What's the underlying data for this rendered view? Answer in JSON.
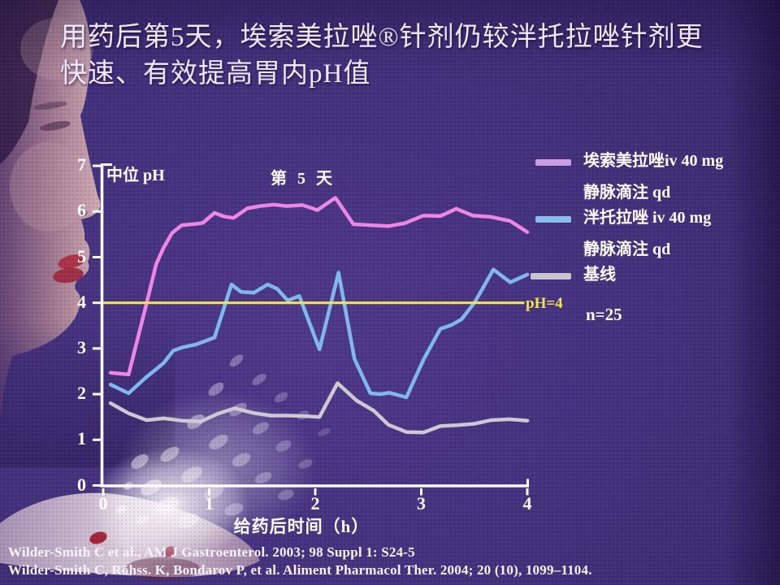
{
  "slide": {
    "title_line1": "用药后第5天，埃索美拉唑®针剂仍较泮托拉唑针剂更",
    "title_line2": "快速、有效提高胃内pH值",
    "references": [
      "Wilder-Smith C  et al., AM J Gastroenterol. 2003; 98 Suppl 1: S24-5",
      "Wilder-Smith C, Röhss. K, Bondarov P, et al. Aliment Pharmacol Ther. 2004; 20 (10), 1099–1104."
    ]
  },
  "chart_data": {
    "type": "line",
    "title": "第 5 天",
    "ylabel": "中位 pH",
    "xlabel": "给药后时间（h）",
    "xlim": [
      0,
      4
    ],
    "ylim": [
      0,
      7
    ],
    "xticks": [
      "0",
      "1",
      "2",
      "3",
      "4"
    ],
    "yticks": [
      "0",
      "1",
      "2",
      "3",
      "4",
      "5",
      "6",
      "7"
    ],
    "grid": false,
    "legend_position": "right",
    "reference_line": {
      "y": 4,
      "label": "pH=4",
      "color": "#f2e44a"
    },
    "annotation": "n=25",
    "series": [
      {
        "name": "埃索美拉唑iv 40 mg 静脉滴注 qd",
        "color": "#ef86e4",
        "points": [
          [
            0.07,
            2.47
          ],
          [
            0.24,
            2.43
          ],
          [
            0.4,
            3.9
          ],
          [
            0.5,
            4.85
          ],
          [
            0.57,
            5.21
          ],
          [
            0.65,
            5.53
          ],
          [
            0.74,
            5.7
          ],
          [
            0.88,
            5.73
          ],
          [
            0.94,
            5.75
          ],
          [
            1.05,
            5.97
          ],
          [
            1.14,
            5.89
          ],
          [
            1.23,
            5.86
          ],
          [
            1.36,
            6.07
          ],
          [
            1.48,
            6.12
          ],
          [
            1.61,
            6.15
          ],
          [
            1.73,
            6.12
          ],
          [
            1.88,
            6.14
          ],
          [
            2.02,
            6.03
          ],
          [
            2.19,
            6.3
          ],
          [
            2.36,
            5.72
          ],
          [
            2.53,
            5.7
          ],
          [
            2.69,
            5.68
          ],
          [
            2.84,
            5.74
          ],
          [
            3.02,
            5.91
          ],
          [
            3.18,
            5.9
          ],
          [
            3.33,
            6.06
          ],
          [
            3.49,
            5.91
          ],
          [
            3.66,
            5.88
          ],
          [
            3.84,
            5.79
          ],
          [
            4.0,
            5.55
          ]
        ]
      },
      {
        "name": "泮托拉唑 iv 40 mg 静脉滴注 qd",
        "color": "#80b7ee",
        "points": [
          [
            0.07,
            2.21
          ],
          [
            0.24,
            2.02
          ],
          [
            0.4,
            2.36
          ],
          [
            0.57,
            2.68
          ],
          [
            0.66,
            2.95
          ],
          [
            0.74,
            3.02
          ],
          [
            0.88,
            3.09
          ],
          [
            1.05,
            3.24
          ],
          [
            1.21,
            4.4
          ],
          [
            1.3,
            4.24
          ],
          [
            1.42,
            4.22
          ],
          [
            1.55,
            4.4
          ],
          [
            1.64,
            4.31
          ],
          [
            1.74,
            4.05
          ],
          [
            1.85,
            4.15
          ],
          [
            2.04,
            2.98
          ],
          [
            2.22,
            4.66
          ],
          [
            2.37,
            2.77
          ],
          [
            2.52,
            2.02
          ],
          [
            2.61,
            2.0
          ],
          [
            2.7,
            2.03
          ],
          [
            2.86,
            1.93
          ],
          [
            3.02,
            2.75
          ],
          [
            3.18,
            3.43
          ],
          [
            3.29,
            3.52
          ],
          [
            3.38,
            3.64
          ],
          [
            3.5,
            4.0
          ],
          [
            3.57,
            4.28
          ],
          [
            3.68,
            4.73
          ],
          [
            3.84,
            4.45
          ],
          [
            4.0,
            4.62
          ]
        ]
      },
      {
        "name": "基线",
        "color": "#cdc9d2",
        "points": [
          [
            0.07,
            1.8
          ],
          [
            0.24,
            1.58
          ],
          [
            0.41,
            1.43
          ],
          [
            0.57,
            1.47
          ],
          [
            0.74,
            1.42
          ],
          [
            0.92,
            1.4
          ],
          [
            1.08,
            1.57
          ],
          [
            1.24,
            1.69
          ],
          [
            1.41,
            1.59
          ],
          [
            1.58,
            1.53
          ],
          [
            1.75,
            1.53
          ],
          [
            1.9,
            1.52
          ],
          [
            2.04,
            1.5
          ],
          [
            2.21,
            2.24
          ],
          [
            2.39,
            1.86
          ],
          [
            2.55,
            1.64
          ],
          [
            2.69,
            1.33
          ],
          [
            2.86,
            1.17
          ],
          [
            3.02,
            1.16
          ],
          [
            3.18,
            1.3
          ],
          [
            3.34,
            1.32
          ],
          [
            3.5,
            1.35
          ],
          [
            3.66,
            1.43
          ],
          [
            3.83,
            1.45
          ],
          [
            4.0,
            1.42
          ]
        ]
      }
    ],
    "legend": [
      {
        "label_line1": "埃索美拉唑iv 40 mg",
        "label_line2": "静脉滴注 qd",
        "swatch": "#c99fe2"
      },
      {
        "label_line1": "泮托拉唑 iv 40 mg",
        "label_line2": "静脉滴注 qd",
        "swatch": "#8cbbee"
      },
      {
        "label_line1": "基线",
        "label_line2": "",
        "swatch": "#c9c5cf"
      }
    ]
  }
}
